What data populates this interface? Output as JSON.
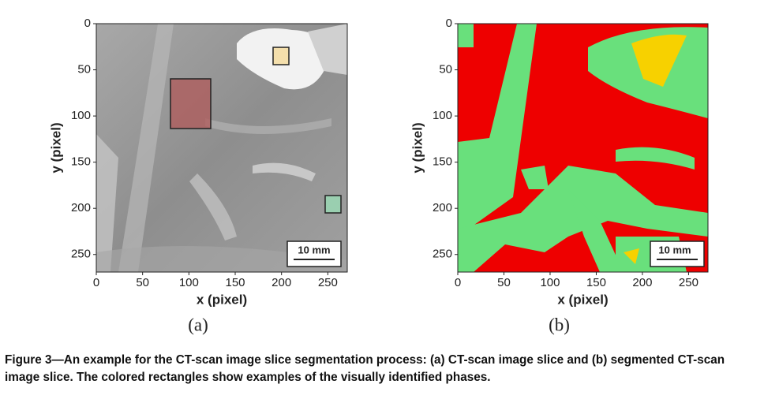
{
  "panels": [
    {
      "xlabel": "x (pixel)",
      "ylabel": "y (pixel)",
      "xlim": [
        0,
        271
      ],
      "ylim": [
        0,
        269
      ],
      "xticks": [
        0,
        50,
        100,
        150,
        200,
        250
      ],
      "yticks": [
        0,
        50,
        100,
        150,
        200,
        250
      ],
      "scale_bar": "10 mm",
      "label": "(a)"
    },
    {
      "xlabel": "x (pixel)",
      "ylabel": "y (pixel)",
      "xlim": [
        0,
        271
      ],
      "ylim": [
        0,
        269
      ],
      "xticks": [
        0,
        50,
        100,
        150,
        200,
        250
      ],
      "yticks": [
        0,
        50,
        100,
        150,
        200,
        250
      ],
      "scale_bar": "10 mm",
      "label": "(b)"
    }
  ],
  "caption": "Figure 3—An example for the CT-scan image slice segmentation process: (a) CT-scan image slice and (b) segmented CT-scan image slice. The colored rectangles show examples of the visually identified phases."
}
